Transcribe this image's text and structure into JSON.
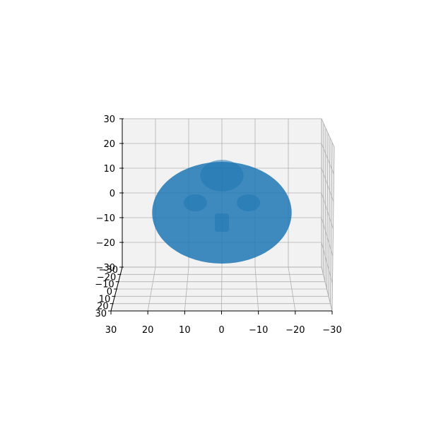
{
  "chart_data": {
    "type": "surface3d",
    "title": "",
    "xlabel": "",
    "ylabel": "",
    "zlabel": "",
    "xlim": [
      30,
      -30
    ],
    "ylim": [
      -30,
      30
    ],
    "zlim": [
      -30,
      30
    ],
    "grid": true,
    "x_ticks": [
      "30",
      "20",
      "10",
      "0",
      "−10",
      "−20",
      "−30"
    ],
    "y_ticks": [
      "−30",
      "−20",
      "−10",
      "0",
      "10",
      "20",
      "30"
    ],
    "z_ticks": [
      "30",
      "20",
      "10",
      "0",
      "−10",
      "−20",
      "−30"
    ],
    "series": [
      {
        "shape": "sphere",
        "center": [
          0,
          0,
          -8
        ],
        "radius": 21
      },
      {
        "shape": "sphere",
        "center": [
          0,
          0,
          7
        ],
        "radius": 6.5
      },
      {
        "shape": "sphere",
        "center": [
          8,
          0,
          -4
        ],
        "radius": 3.5
      },
      {
        "shape": "sphere",
        "center": [
          -8,
          0,
          -4
        ],
        "radius": 3.5
      },
      {
        "shape": "box",
        "center": [
          0,
          0,
          -12
        ],
        "size": [
          4,
          4,
          7
        ]
      }
    ],
    "colors": {
      "surface": "#1f77b4",
      "pane": "#f2f2f2",
      "grid": "#b0b0b0",
      "axis": "#000000"
    }
  }
}
